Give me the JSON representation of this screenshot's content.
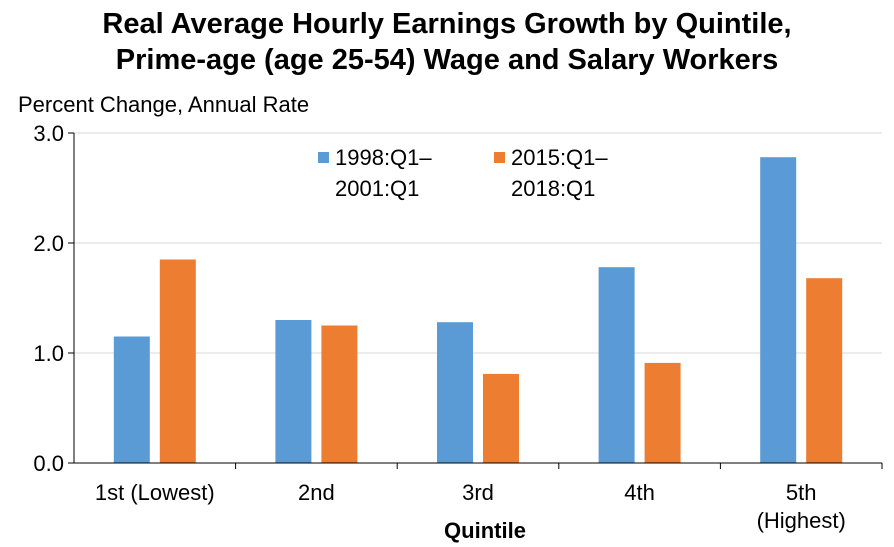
{
  "chart_data": {
    "type": "bar",
    "title_line1": "Real Average Hourly Earnings Growth by Quintile,",
    "title_line2": "Prime-age (age 25-54) Wage and Salary Workers",
    "ylabel": "Percent Change, Annual Rate",
    "xlabel": "Quintile",
    "ylim": [
      0,
      3
    ],
    "yticks": [
      "0.0",
      "1.0",
      "2.0",
      "3.0"
    ],
    "ytick_values": [
      0,
      1,
      2,
      3
    ],
    "grid": true,
    "legend_position": "top-center",
    "categories": [
      [
        "1st (Lowest)"
      ],
      [
        "2nd"
      ],
      [
        "3rd"
      ],
      [
        "4th"
      ],
      [
        "5th",
        "(Highest)"
      ]
    ],
    "series": [
      {
        "name_line1": "1998:Q1–",
        "name_line2": "2001:Q1",
        "color": "#5B9BD5",
        "values": [
          1.15,
          1.3,
          1.28,
          1.78,
          2.78
        ]
      },
      {
        "name_line1": "2015:Q1–",
        "name_line2": "2018:Q1",
        "color": "#ED7D31",
        "values": [
          1.85,
          1.25,
          0.81,
          0.91,
          1.68
        ]
      }
    ]
  }
}
